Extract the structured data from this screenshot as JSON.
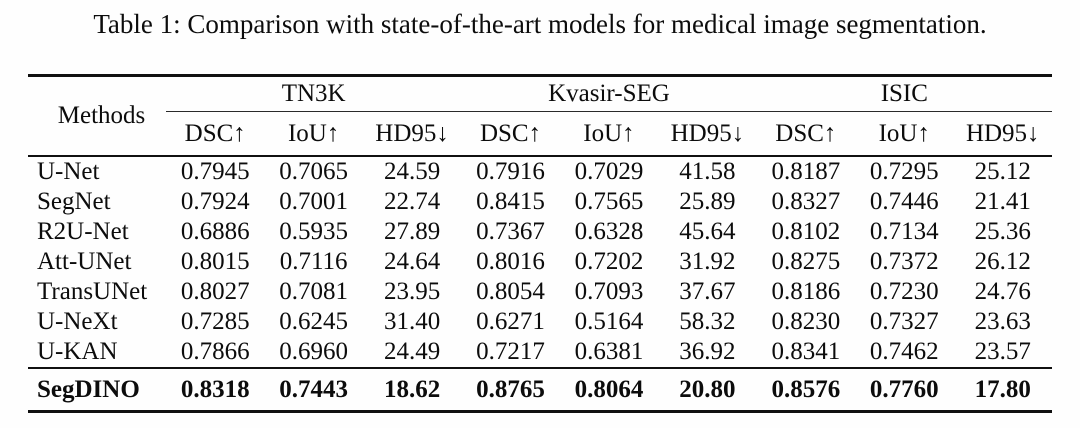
{
  "caption": "Table 1: Comparison with state-of-the-art models for medical image segmentation.",
  "colors": {
    "background": "#fefefe",
    "text": "#0c0c0c",
    "rule": "#101010"
  },
  "table": {
    "methods_header": "Methods",
    "groups": [
      "TN3K",
      "Kvasir-SEG",
      "ISIC"
    ],
    "subheaders": [
      "DSC↑",
      "IoU↑",
      "HD95↓",
      "DSC↑",
      "IoU↑",
      "HD95↓",
      "DSC↑",
      "IoU↑",
      "HD95↓"
    ],
    "rows": [
      {
        "method": "U-Net",
        "bold": false,
        "values": [
          "0.7945",
          "0.7065",
          "24.59",
          "0.7916",
          "0.7029",
          "41.58",
          "0.8187",
          "0.7295",
          "25.12"
        ]
      },
      {
        "method": "SegNet",
        "bold": false,
        "values": [
          "0.7924",
          "0.7001",
          "22.74",
          "0.8415",
          "0.7565",
          "25.89",
          "0.8327",
          "0.7446",
          "21.41"
        ]
      },
      {
        "method": "R2U-Net",
        "bold": false,
        "values": [
          "0.6886",
          "0.5935",
          "27.89",
          "0.7367",
          "0.6328",
          "45.64",
          "0.8102",
          "0.7134",
          "25.36"
        ]
      },
      {
        "method": "Att-UNet",
        "bold": false,
        "values": [
          "0.8015",
          "0.7116",
          "24.64",
          "0.8016",
          "0.7202",
          "31.92",
          "0.8275",
          "0.7372",
          "26.12"
        ]
      },
      {
        "method": "TransUNet",
        "bold": false,
        "values": [
          "0.8027",
          "0.7081",
          "23.95",
          "0.8054",
          "0.7093",
          "37.67",
          "0.8186",
          "0.7230",
          "24.76"
        ]
      },
      {
        "method": "U-NeXt",
        "bold": false,
        "values": [
          "0.7285",
          "0.6245",
          "31.40",
          "0.6271",
          "0.5164",
          "58.32",
          "0.8230",
          "0.7327",
          "23.63"
        ]
      },
      {
        "method": "U-KAN",
        "bold": false,
        "values": [
          "0.7866",
          "0.6960",
          "24.49",
          "0.7217",
          "0.6381",
          "36.92",
          "0.8341",
          "0.7462",
          "23.57"
        ]
      },
      {
        "method": "SegDINO",
        "bold": true,
        "values": [
          "0.8318",
          "0.7443",
          "18.62",
          "0.8765",
          "0.8064",
          "20.80",
          "0.8576",
          "0.7760",
          "17.80"
        ]
      }
    ]
  }
}
